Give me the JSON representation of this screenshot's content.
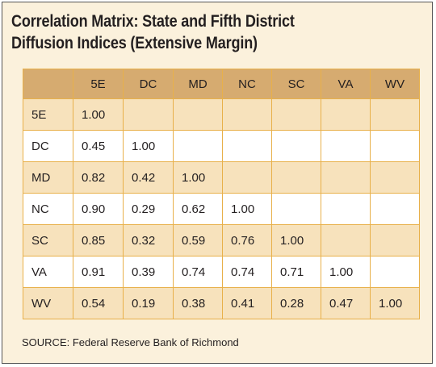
{
  "title": {
    "line1": "Correlation Matrix: State and Fifth District",
    "line2": "Diffusion Indices (Extensive Margin)"
  },
  "chart_data": {
    "type": "table",
    "columns": [
      "5E",
      "DC",
      "MD",
      "NC",
      "SC",
      "VA",
      "WV"
    ],
    "rows": [
      {
        "label": "5E",
        "values": [
          "1.00",
          "",
          "",
          "",
          "",
          "",
          ""
        ]
      },
      {
        "label": "DC",
        "values": [
          "0.45",
          "1.00",
          "",
          "",
          "",
          "",
          ""
        ]
      },
      {
        "label": "MD",
        "values": [
          "0.82",
          "0.42",
          "1.00",
          "",
          "",
          "",
          ""
        ]
      },
      {
        "label": "NC",
        "values": [
          "0.90",
          "0.29",
          "0.62",
          "1.00",
          "",
          "",
          ""
        ]
      },
      {
        "label": "SC",
        "values": [
          "0.85",
          "0.32",
          "0.59",
          "0.76",
          "1.00",
          "",
          ""
        ]
      },
      {
        "label": "VA",
        "values": [
          "0.91",
          "0.39",
          "0.74",
          "0.74",
          "0.71",
          "1.00",
          ""
        ]
      },
      {
        "label": "WV",
        "values": [
          "0.54",
          "0.19",
          "0.38",
          "0.41",
          "0.28",
          "0.47",
          "1.00"
        ]
      }
    ]
  },
  "source": "SOURCE: Federal Reserve Bank of Richmond",
  "colors": {
    "panel_bg": "#fbf1dc",
    "header_bg": "#d6ab70",
    "tinted_row": "#f7e2bc",
    "plain_row": "#ffffff",
    "grid": "#e8b04a"
  }
}
